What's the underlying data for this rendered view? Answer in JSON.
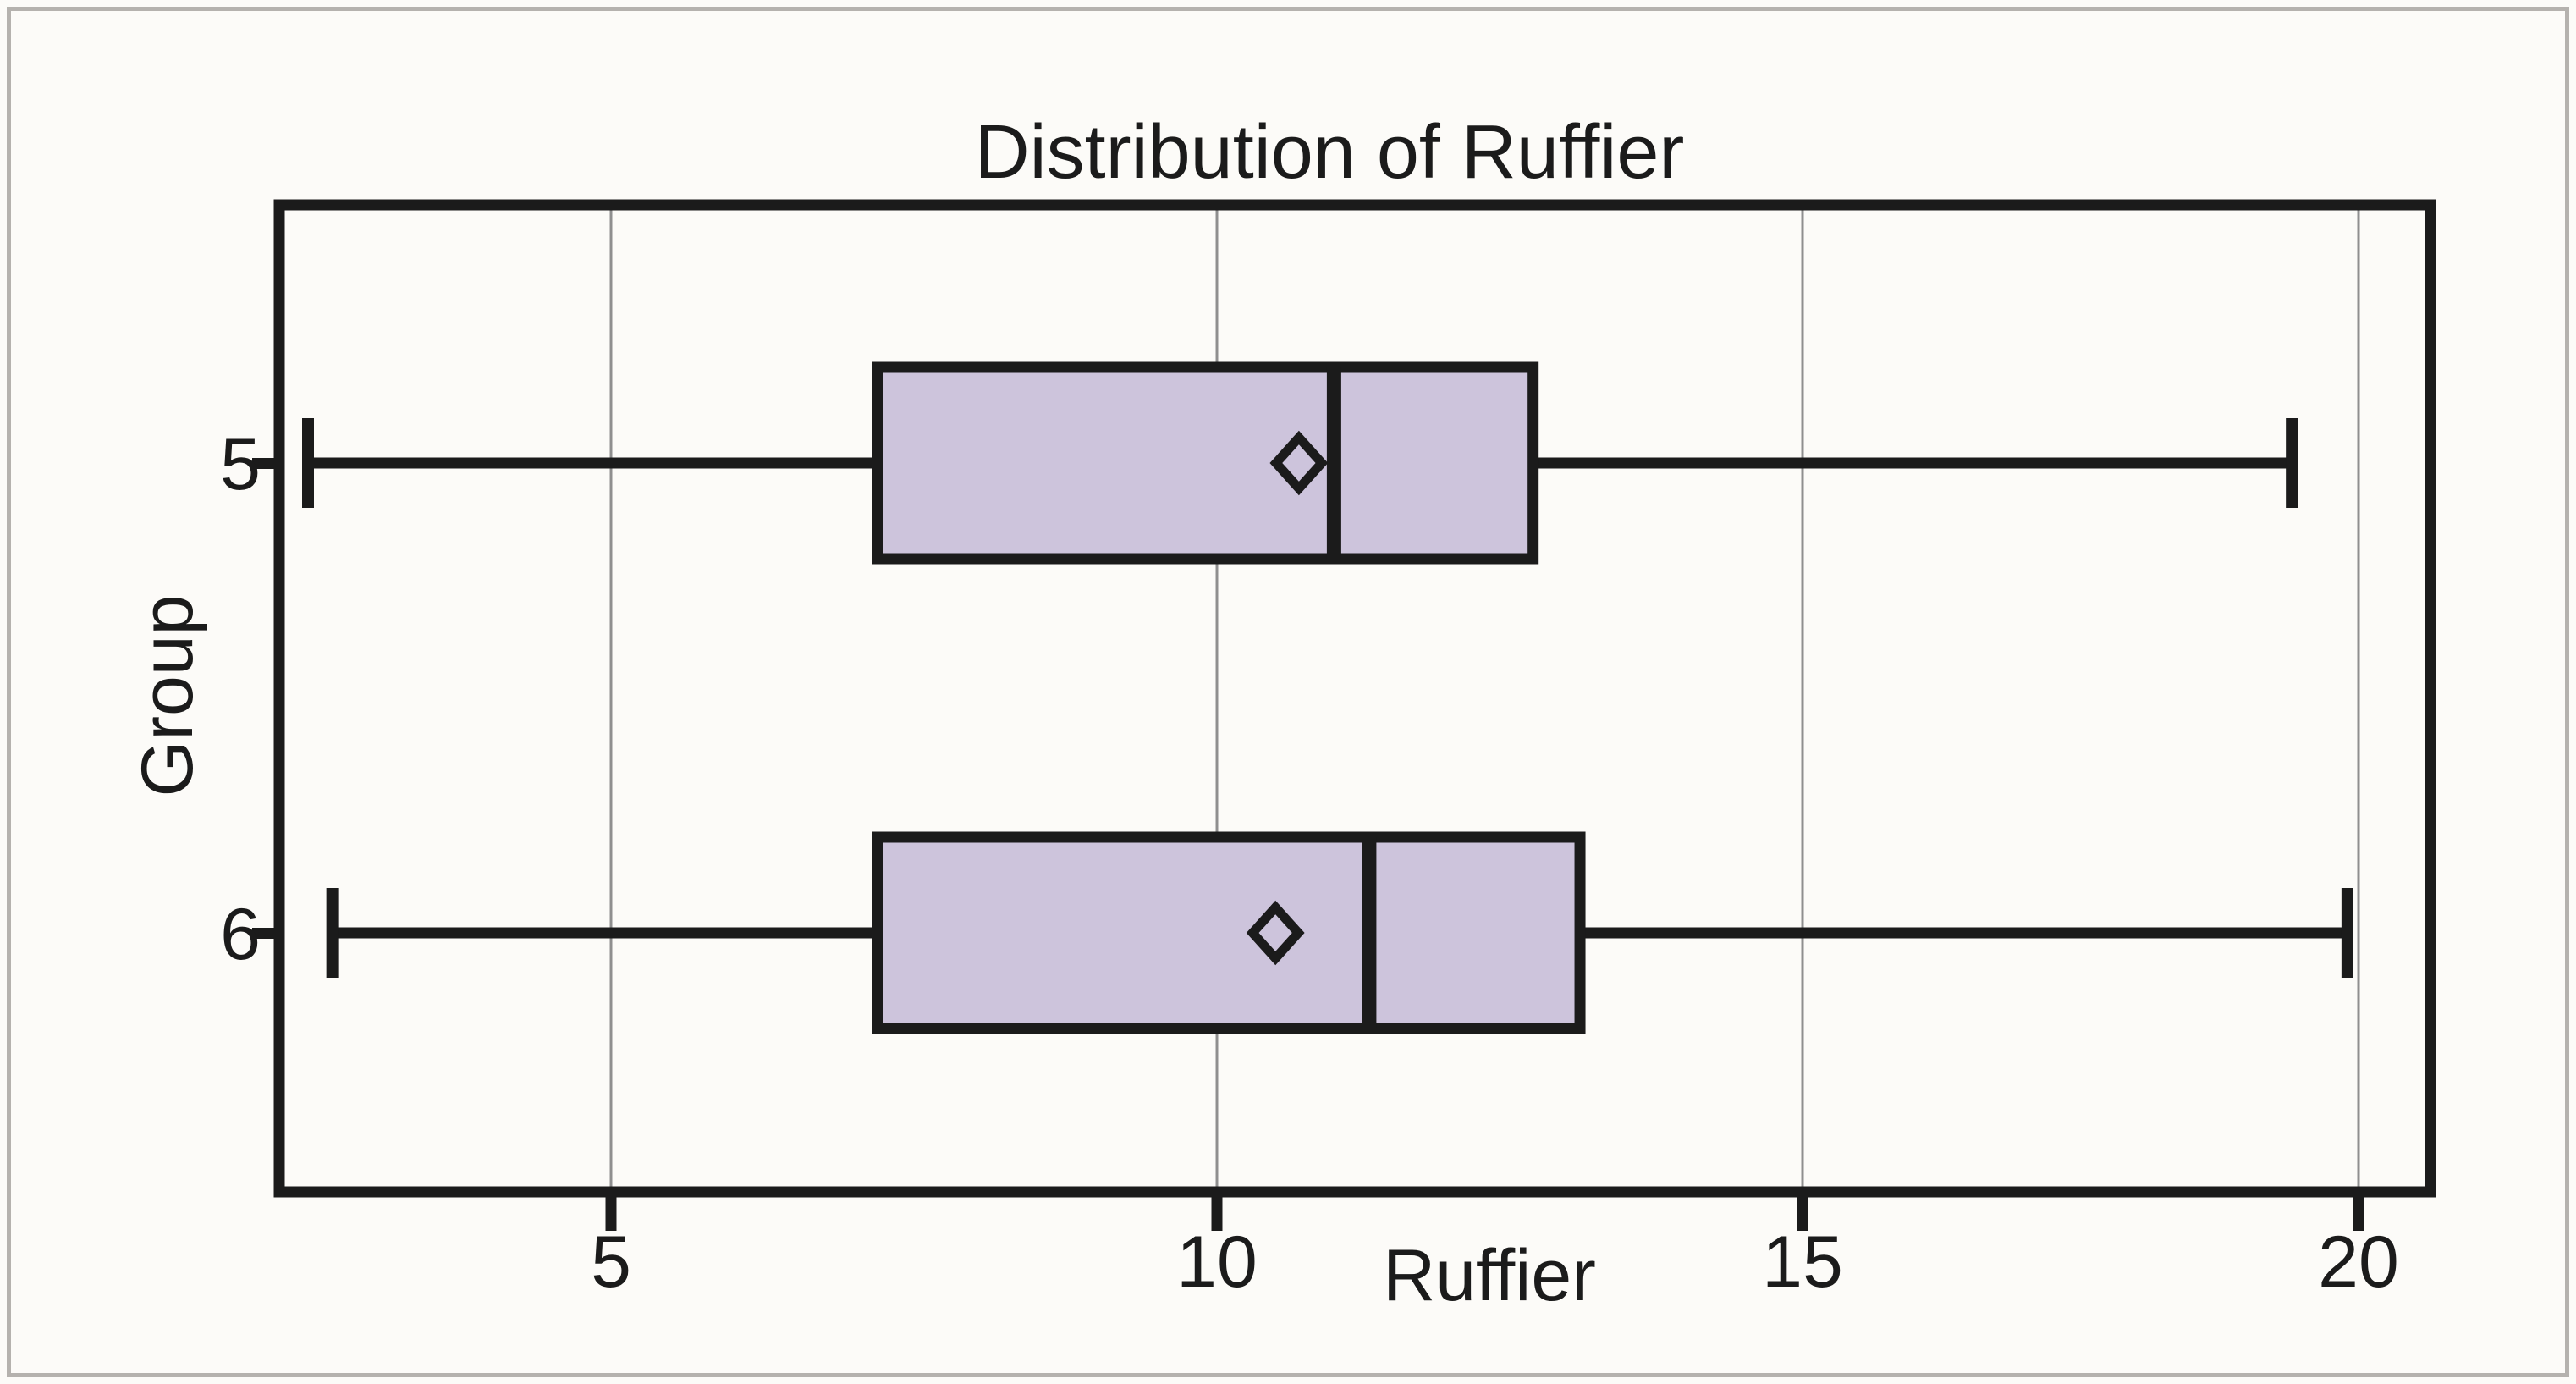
{
  "chart_data": {
    "type": "boxplot",
    "orientation": "horizontal",
    "title": "Distribution of Ruffier",
    "xlabel": "Ruffier",
    "ylabel": "Group",
    "x_ticks": [
      "5",
      "10",
      "15",
      "20"
    ],
    "x_tick_values": [
      5,
      10,
      15,
      20
    ],
    "xlim": [
      2.15,
      20.65
    ],
    "grid": true,
    "legend": false,
    "categories": [
      "5",
      "6"
    ],
    "series": [
      {
        "group": "5",
        "whisker_min": 2.5,
        "q1": 7.2,
        "median": 11.0,
        "q3": 12.7,
        "whisker_max": 19.4,
        "mean": 10.7
      },
      {
        "group": "6",
        "whisker_min": 2.7,
        "q1": 7.2,
        "median": 11.3,
        "q3": 13.1,
        "whisker_max": 19.9,
        "mean": 10.5
      }
    ],
    "colors": {
      "box_fill": "#cdc4dc",
      "line": "#1b1b1b",
      "grid": "#8f8f8f",
      "background": "#fcfbf8",
      "frame": "#b5b2ae"
    }
  }
}
